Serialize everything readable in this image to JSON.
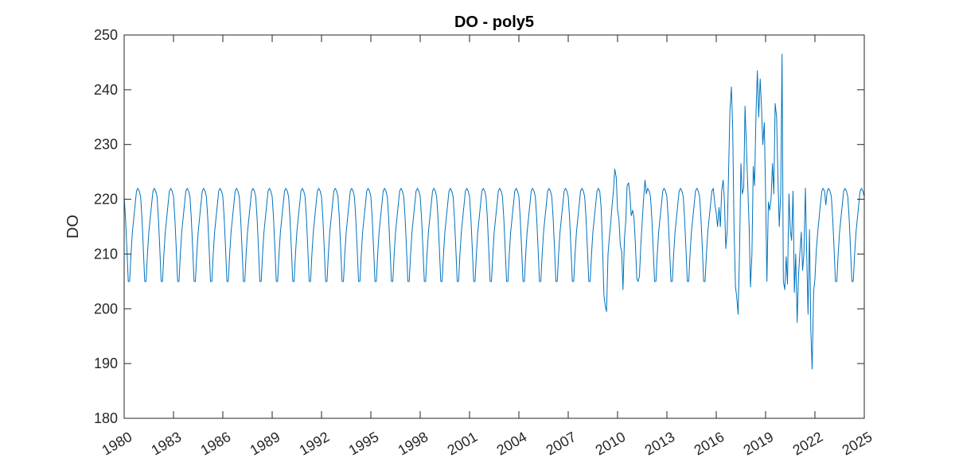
{
  "chart_data": {
    "type": "line",
    "title": "DO - poly5",
    "xlabel": "",
    "ylabel": "DO",
    "xlim": [
      1980,
      2025
    ],
    "ylim": [
      180,
      250
    ],
    "x_ticks": [
      "1980",
      "1983",
      "1986",
      "1989",
      "1992",
      "1995",
      "1998",
      "2001",
      "2004",
      "2007",
      "2010",
      "2013",
      "2016",
      "2019",
      "2022",
      "2025"
    ],
    "y_ticks": [
      "180",
      "190",
      "200",
      "210",
      "220",
      "230",
      "240",
      "250"
    ],
    "grid": false,
    "line_color": "#0072BD",
    "seasonal_cycle": [
      220.5,
      216.5,
      211.0,
      205.0,
      205.0,
      210.0,
      214.0,
      216.5,
      219.0,
      221.5,
      222.0,
      221.5
    ],
    "regular_start_year": 1980,
    "irregular_series": [
      {
        "x": 2009.0,
        "y": 218.5
      },
      {
        "x": 2009.08,
        "y": 212.0
      },
      {
        "x": 2009.17,
        "y": 202.5
      },
      {
        "x": 2009.25,
        "y": 200.5
      },
      {
        "x": 2009.33,
        "y": 199.5
      },
      {
        "x": 2009.42,
        "y": 210.0
      },
      {
        "x": 2009.5,
        "y": 213.0
      },
      {
        "x": 2009.58,
        "y": 215.5
      },
      {
        "x": 2009.67,
        "y": 219.0
      },
      {
        "x": 2009.75,
        "y": 221.5
      },
      {
        "x": 2009.83,
        "y": 225.5
      },
      {
        "x": 2009.92,
        "y": 224.0
      },
      {
        "x": 2010.0,
        "y": 218.0
      },
      {
        "x": 2010.08,
        "y": 216.5
      },
      {
        "x": 2010.17,
        "y": 211.5
      },
      {
        "x": 2010.25,
        "y": 210.5
      },
      {
        "x": 2010.33,
        "y": 203.5
      },
      {
        "x": 2010.42,
        "y": 213.0
      },
      {
        "x": 2010.5,
        "y": 216.0
      },
      {
        "x": 2010.58,
        "y": 222.5
      },
      {
        "x": 2010.67,
        "y": 223.0
      },
      {
        "x": 2010.75,
        "y": 221.0
      },
      {
        "x": 2010.83,
        "y": 217.0
      },
      {
        "x": 2010.92,
        "y": 218.0
      },
      {
        "x": 2011.0,
        "y": 216.5
      },
      {
        "x": 2011.08,
        "y": 212.0
      },
      {
        "x": 2011.17,
        "y": 205.5
      },
      {
        "x": 2011.25,
        "y": 205.0
      },
      {
        "x": 2011.33,
        "y": 206.0
      },
      {
        "x": 2011.42,
        "y": 212.0
      },
      {
        "x": 2011.5,
        "y": 216.0
      },
      {
        "x": 2011.58,
        "y": 220.0
      },
      {
        "x": 2011.67,
        "y": 223.5
      },
      {
        "x": 2011.75,
        "y": 221.0
      },
      {
        "x": 2011.83,
        "y": 222.0
      },
      {
        "x": 2011.92,
        "y": 221.5
      },
      {
        "x": 2015.92,
        "y": 219.0
      },
      {
        "x": 2016.0,
        "y": 217.5
      },
      {
        "x": 2016.08,
        "y": 215.0
      },
      {
        "x": 2016.17,
        "y": 218.5
      },
      {
        "x": 2016.25,
        "y": 215.0
      },
      {
        "x": 2016.33,
        "y": 221.5
      },
      {
        "x": 2016.42,
        "y": 223.5
      },
      {
        "x": 2016.5,
        "y": 219.5
      },
      {
        "x": 2016.58,
        "y": 211.0
      },
      {
        "x": 2016.67,
        "y": 214.5
      },
      {
        "x": 2016.75,
        "y": 225.0
      },
      {
        "x": 2016.83,
        "y": 236.0
      },
      {
        "x": 2016.92,
        "y": 240.5
      },
      {
        "x": 2017.0,
        "y": 233.0
      },
      {
        "x": 2017.08,
        "y": 215.0
      },
      {
        "x": 2017.17,
        "y": 204.0
      },
      {
        "x": 2017.25,
        "y": 202.0
      },
      {
        "x": 2017.33,
        "y": 199.0
      },
      {
        "x": 2017.42,
        "y": 211.0
      },
      {
        "x": 2017.5,
        "y": 226.5
      },
      {
        "x": 2017.58,
        "y": 221.0
      },
      {
        "x": 2017.67,
        "y": 222.0
      },
      {
        "x": 2017.75,
        "y": 237.0
      },
      {
        "x": 2017.83,
        "y": 230.0
      },
      {
        "x": 2017.92,
        "y": 222.0
      },
      {
        "x": 2018.0,
        "y": 215.0
      },
      {
        "x": 2018.08,
        "y": 204.0
      },
      {
        "x": 2018.17,
        "y": 210.0
      },
      {
        "x": 2018.25,
        "y": 226.0
      },
      {
        "x": 2018.33,
        "y": 222.5
      },
      {
        "x": 2018.42,
        "y": 236.0
      },
      {
        "x": 2018.5,
        "y": 243.5
      },
      {
        "x": 2018.58,
        "y": 235.0
      },
      {
        "x": 2018.67,
        "y": 242.0
      },
      {
        "x": 2018.75,
        "y": 237.0
      },
      {
        "x": 2018.83,
        "y": 230.0
      },
      {
        "x": 2018.92,
        "y": 234.0
      },
      {
        "x": 2019.0,
        "y": 221.0
      },
      {
        "x": 2019.08,
        "y": 205.0
      },
      {
        "x": 2019.17,
        "y": 219.5
      },
      {
        "x": 2019.25,
        "y": 218.0
      },
      {
        "x": 2019.33,
        "y": 220.0
      },
      {
        "x": 2019.42,
        "y": 226.5
      },
      {
        "x": 2019.5,
        "y": 221.0
      },
      {
        "x": 2019.58,
        "y": 237.5
      },
      {
        "x": 2019.67,
        "y": 235.0
      },
      {
        "x": 2019.75,
        "y": 224.0
      },
      {
        "x": 2019.83,
        "y": 215.0
      },
      {
        "x": 2019.92,
        "y": 221.0
      },
      {
        "x": 2020.0,
        "y": 246.5
      },
      {
        "x": 2020.08,
        "y": 205.0
      },
      {
        "x": 2020.17,
        "y": 203.5
      },
      {
        "x": 2020.25,
        "y": 209.5
      },
      {
        "x": 2020.33,
        "y": 204.5
      },
      {
        "x": 2020.42,
        "y": 221.0
      },
      {
        "x": 2020.5,
        "y": 214.5
      },
      {
        "x": 2020.58,
        "y": 212.5
      },
      {
        "x": 2020.67,
        "y": 221.5
      },
      {
        "x": 2020.75,
        "y": 203.0
      },
      {
        "x": 2020.83,
        "y": 210.0
      },
      {
        "x": 2020.92,
        "y": 197.5
      },
      {
        "x": 2021.0,
        "y": 206.0
      },
      {
        "x": 2021.08,
        "y": 210.0
      },
      {
        "x": 2021.17,
        "y": 214.0
      },
      {
        "x": 2021.25,
        "y": 207.0
      },
      {
        "x": 2021.33,
        "y": 210.0
      },
      {
        "x": 2021.42,
        "y": 222.0
      },
      {
        "x": 2021.5,
        "y": 210.0
      },
      {
        "x": 2021.58,
        "y": 199.0
      },
      {
        "x": 2021.67,
        "y": 214.5
      },
      {
        "x": 2021.75,
        "y": 196.0
      },
      {
        "x": 2021.83,
        "y": 189.0
      },
      {
        "x": 2021.92,
        "y": 203.0
      },
      {
        "x": 2022.0,
        "y": 205.5
      },
      {
        "x": 2022.08,
        "y": 210.5
      },
      {
        "x": 2022.17,
        "y": 214.0
      },
      {
        "x": 2022.25,
        "y": 216.5
      },
      {
        "x": 2022.33,
        "y": 219.0
      },
      {
        "x": 2022.42,
        "y": 221.5
      },
      {
        "x": 2022.5,
        "y": 222.0
      },
      {
        "x": 2022.58,
        "y": 221.5
      }
    ],
    "regular_end_year": 2025
  }
}
